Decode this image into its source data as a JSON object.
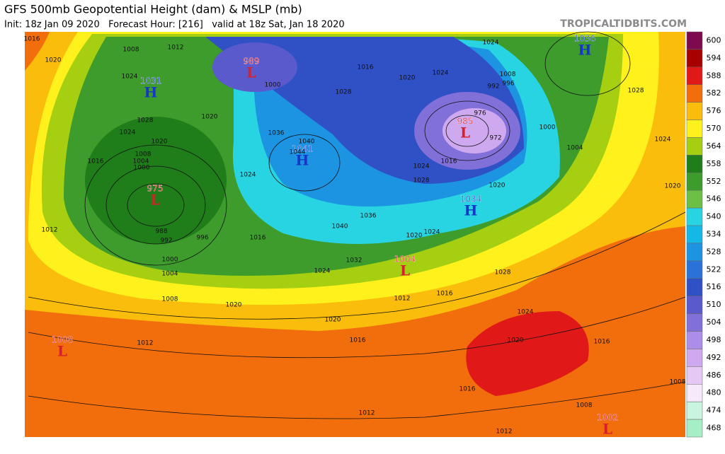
{
  "header": {
    "title": "GFS 500mb Geopotential Height (dam) & MSLP (mb)",
    "subtitle": "Init: 18z Jan 09 2020   Forecast Hour: [216]   valid at 18z Sat, Jan 18 2020",
    "credit": "TROPICALTIDBITS.COM"
  },
  "colorbar": {
    "levels": [
      {
        "label": "600",
        "color": "#7d0a4e"
      },
      {
        "label": "594",
        "color": "#a80000"
      },
      {
        "label": "588",
        "color": "#e01818"
      },
      {
        "label": "582",
        "color": "#f26d0c"
      },
      {
        "label": "576",
        "color": "#fbbd0c"
      },
      {
        "label": "570",
        "color": "#fff21c"
      },
      {
        "label": "564",
        "color": "#a6cf12"
      },
      {
        "label": "558",
        "color": "#1f7d1a"
      },
      {
        "label": "552",
        "color": "#3e9c2c"
      },
      {
        "label": "546",
        "color": "#6cc046"
      },
      {
        "label": "540",
        "color": "#28d4e2"
      },
      {
        "label": "534",
        "color": "#14b8e6"
      },
      {
        "label": "528",
        "color": "#1c94e2"
      },
      {
        "label": "522",
        "color": "#2a72d8"
      },
      {
        "label": "516",
        "color": "#3050c6"
      },
      {
        "label": "510",
        "color": "#5a5acc"
      },
      {
        "label": "504",
        "color": "#8170d8"
      },
      {
        "label": "498",
        "color": "#ac8ee8"
      },
      {
        "label": "492",
        "color": "#cfa9f0"
      },
      {
        "label": "486",
        "color": "#e6c8f4"
      },
      {
        "label": "480",
        "color": "#f5e9fa"
      },
      {
        "label": "474",
        "color": "#c9f4df"
      },
      {
        "label": "468",
        "color": "#a6efc6"
      }
    ]
  },
  "centers": [
    {
      "letter": "H",
      "pressure": "1036"
    },
    {
      "letter": "H",
      "pressure": "1031"
    },
    {
      "letter": "L",
      "pressure": "989"
    },
    {
      "letter": "L",
      "pressure": "975"
    },
    {
      "letter": "L",
      "pressure": "985"
    },
    {
      "letter": "H",
      "pressure": "1041"
    },
    {
      "letter": "H",
      "pressure": "1034"
    },
    {
      "letter": "L",
      "pressure": "1004"
    },
    {
      "letter": "L",
      "pressure": "1008"
    },
    {
      "letter": "L",
      "pressure": "1002"
    }
  ],
  "isobar_labels": [
    "1016",
    "1020",
    "1008",
    "1012",
    "1024",
    "1028",
    "1024",
    "1020",
    "1016",
    "1008",
    "1004",
    "1000",
    "988",
    "992",
    "996",
    "1000",
    "1004",
    "1008",
    "1012",
    "1020",
    "1016",
    "1024",
    "1020",
    "1000",
    "1036",
    "1040",
    "1044",
    "1040",
    "1036",
    "1032",
    "1024",
    "1020",
    "1016",
    "1012",
    "1016",
    "1020",
    "1024",
    "1028",
    "1024",
    "1020",
    "1016",
    "1016",
    "1012",
    "1012",
    "1008",
    "1008",
    "1012",
    "1020",
    "1024",
    "1004",
    "1000",
    "1028",
    "1024",
    "1008",
    "996",
    "992",
    "976",
    "972",
    "1016",
    "1024",
    "1028",
    "1020",
    "1020",
    "1016",
    "1024",
    "1028"
  ]
}
